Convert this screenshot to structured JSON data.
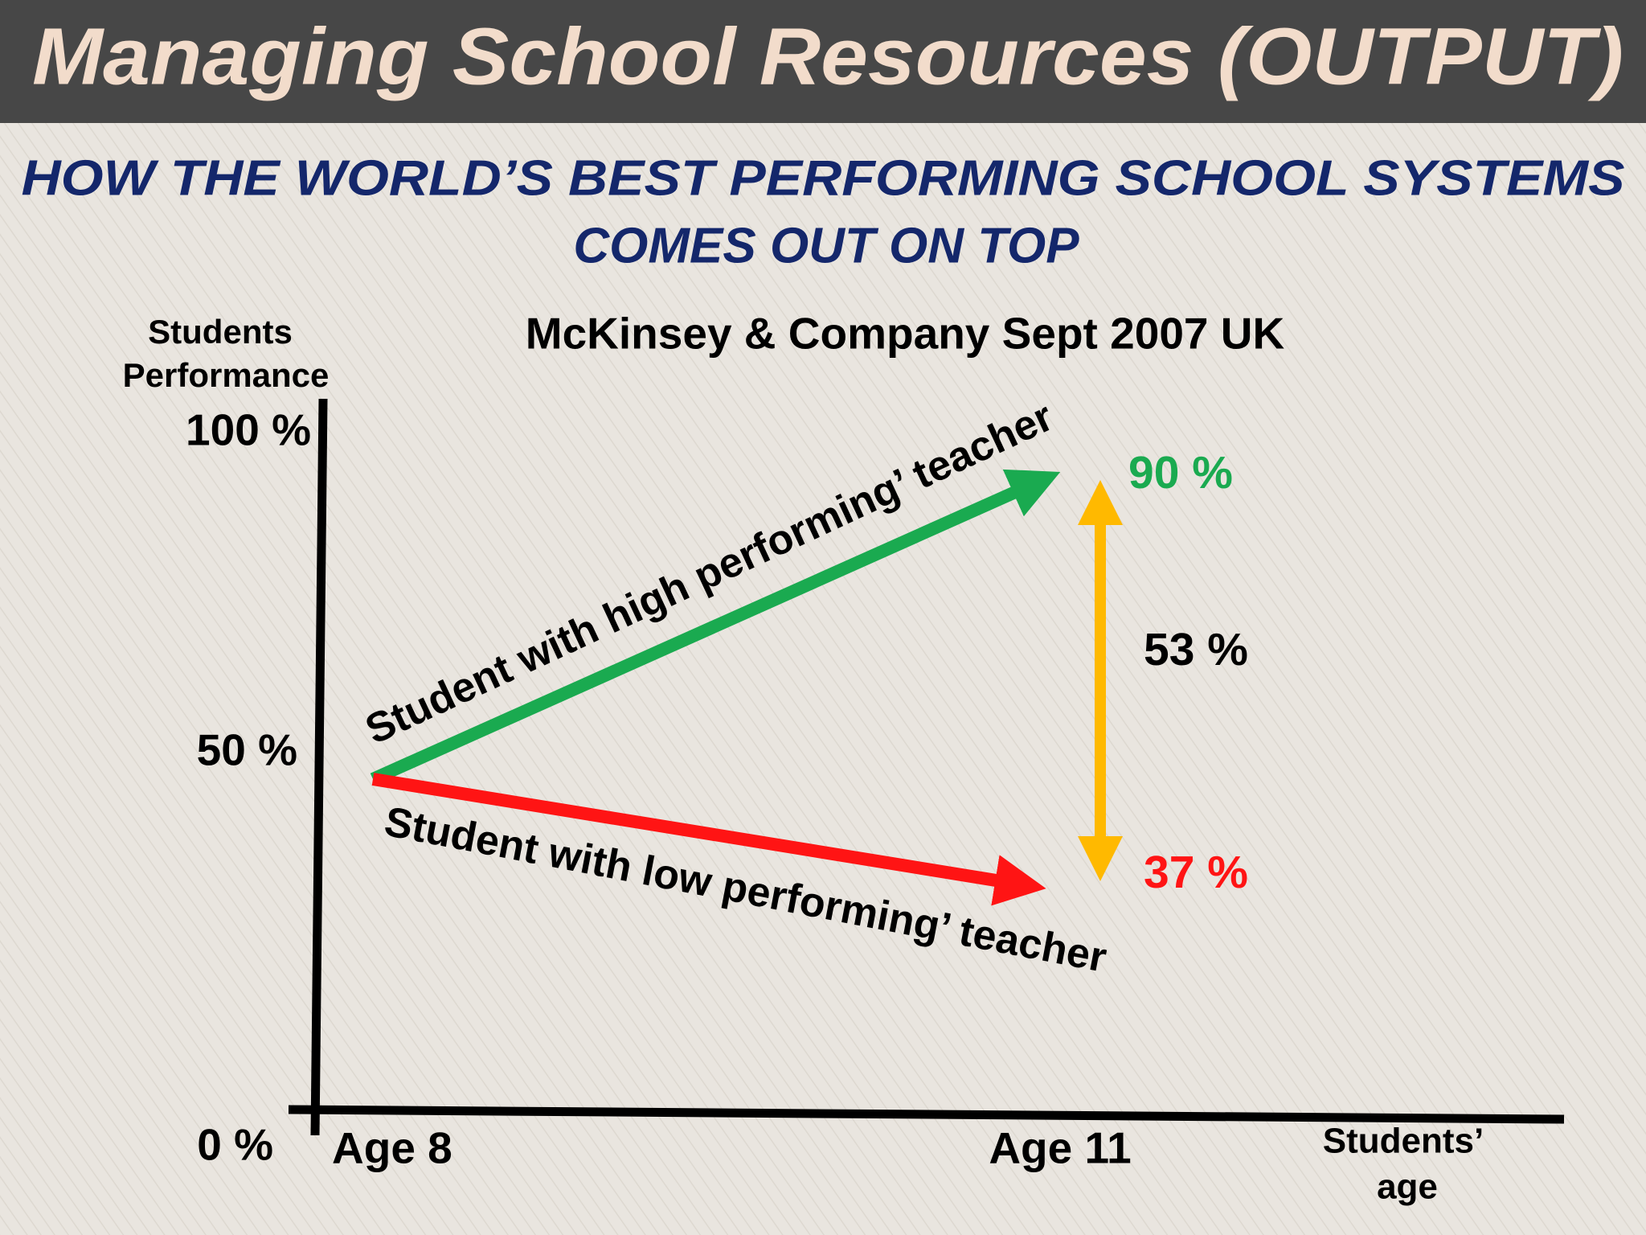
{
  "header": {
    "title": "Managing School Resources (OUTPUT)"
  },
  "subtitle": [
    "HOW THE WORLD’S BEST PERFORMING SCHOOL SYSTEMS",
    "COMES OUT ON TOP"
  ],
  "source": "McKinsey & Company Sept 2007 UK",
  "y_axis": {
    "label": [
      "Students",
      "Performance"
    ],
    "ticks": [
      "100 %",
      "50 %",
      "0 %"
    ]
  },
  "x_axis": {
    "label": [
      "Students’",
      "age"
    ],
    "ticks": [
      "Age 8",
      "Age 11"
    ]
  },
  "arrows": {
    "high": {
      "label": "Student with high performing’ teacher",
      "value": "90 %"
    },
    "low": {
      "label": "Student with low performing’ teacher",
      "value": "37 %"
    },
    "gap": {
      "value": "53 %"
    }
  }
}
